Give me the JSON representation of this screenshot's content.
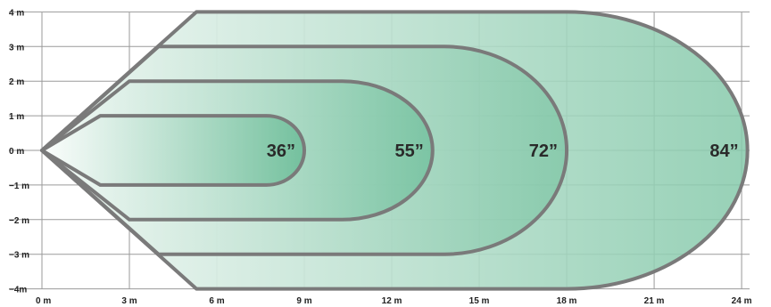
{
  "x_axis": {
    "unit": "m",
    "ticks": [
      "0 m",
      "3 m",
      "6 m",
      "9 m",
      "12 m",
      "15 m",
      "18 m",
      "21 m",
      "24 m"
    ],
    "values": [
      0,
      3,
      6,
      9,
      12,
      15,
      18,
      21,
      24
    ]
  },
  "y_axis": {
    "unit": "m",
    "ticks": [
      "4 m",
      "3 m",
      "2 m",
      "1 m",
      "0 m",
      "−1 m",
      "−2 m",
      "−3 m",
      "−4m"
    ],
    "values": [
      4,
      3,
      2,
      1,
      0,
      -1,
      -2,
      -3,
      -4
    ]
  },
  "zones": [
    {
      "label": "84”",
      "half_width_m": 4,
      "corner_x_m": 5.3,
      "flat_end_x_m": 18.0,
      "tip_x_m": 24.2
    },
    {
      "label": "72”",
      "half_width_m": 3,
      "corner_x_m": 4.0,
      "flat_end_x_m": 13.8,
      "tip_x_m": 18.0
    },
    {
      "label": "55”",
      "half_width_m": 2,
      "corner_x_m": 3.0,
      "flat_end_x_m": 10.3,
      "tip_x_m": 13.4
    },
    {
      "label": "36”",
      "half_width_m": 1,
      "corner_x_m": 2.0,
      "flat_end_x_m": 7.7,
      "tip_x_m": 9.0
    }
  ],
  "colors": {
    "grid": "#9a9a9a",
    "outline": "#7a7a7a",
    "fill_light": "#eef6f2",
    "fill_dark": "#7fc7a6"
  }
}
